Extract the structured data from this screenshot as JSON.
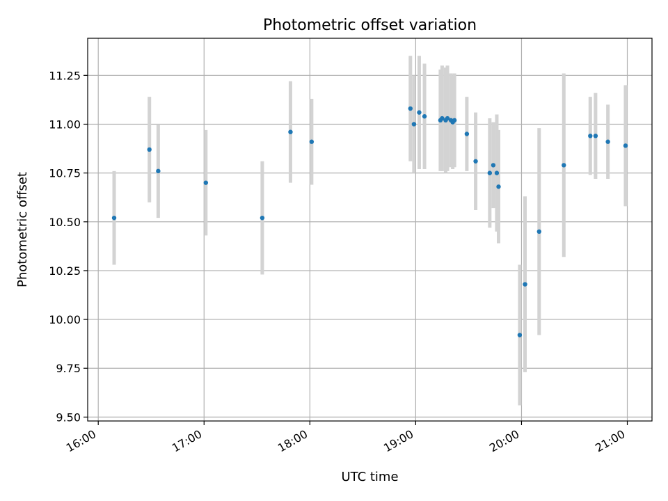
{
  "chart_data": {
    "type": "scatter",
    "title": "Photometric offset variation",
    "xlabel": "UTC time",
    "ylabel": "Photometric offset",
    "x_unit": "hours UTC",
    "xlim": [
      "15:54",
      "21:14"
    ],
    "ylim": [
      9.48,
      11.44
    ],
    "x_ticks": [
      "16:00",
      "17:00",
      "18:00",
      "19:00",
      "20:00",
      "21:00"
    ],
    "y_ticks": [
      "9.50",
      "9.75",
      "10.00",
      "10.25",
      "10.50",
      "10.75",
      "11.00",
      "11.25"
    ],
    "grid": true,
    "legend": "none",
    "colors": {
      "point": "#1f77b4",
      "errorbar": "#d3d3d3",
      "grid": "#b0b0b0",
      "axes": "#000000"
    },
    "series": [
      {
        "points": [
          {
            "x": "16:09",
            "y": 10.52,
            "err": 0.24
          },
          {
            "x": "16:29",
            "y": 10.87,
            "err": 0.27
          },
          {
            "x": "16:34",
            "y": 10.76,
            "err": 0.24
          },
          {
            "x": "17:01",
            "y": 10.7,
            "err": 0.27
          },
          {
            "x": "17:33",
            "y": 10.52,
            "err": 0.29
          },
          {
            "x": "17:49",
            "y": 10.96,
            "err": 0.26
          },
          {
            "x": "18:01",
            "y": 10.91,
            "err": 0.22
          },
          {
            "x": "18:57",
            "y": 11.08,
            "err": 0.27
          },
          {
            "x": "18:59",
            "y": 11.0,
            "err": 0.25
          },
          {
            "x": "19:02",
            "y": 11.06,
            "err": 0.29
          },
          {
            "x": "19:05",
            "y": 11.04,
            "err": 0.27
          },
          {
            "x": "19:14",
            "y": 11.02,
            "err": 0.26
          },
          {
            "x": "19:15",
            "y": 11.03,
            "err": 0.27
          },
          {
            "x": "19:17",
            "y": 11.02,
            "err": 0.27
          },
          {
            "x": "19:18",
            "y": 11.03,
            "err": 0.27
          },
          {
            "x": "19:20",
            "y": 11.02,
            "err": 0.24
          },
          {
            "x": "19:21",
            "y": 11.01,
            "err": 0.24
          },
          {
            "x": "19:22",
            "y": 11.02,
            "err": 0.24
          },
          {
            "x": "19:29",
            "y": 10.95,
            "err": 0.19
          },
          {
            "x": "19:34",
            "y": 10.81,
            "err": 0.25
          },
          {
            "x": "19:42",
            "y": 10.75,
            "err": 0.28
          },
          {
            "x": "19:44",
            "y": 10.79,
            "err": 0.22
          },
          {
            "x": "19:46",
            "y": 10.75,
            "err": 0.3
          },
          {
            "x": "19:47",
            "y": 10.68,
            "err": 0.29
          },
          {
            "x": "19:59",
            "y": 9.92,
            "err": 0.36
          },
          {
            "x": "20:02",
            "y": 10.18,
            "err": 0.45
          },
          {
            "x": "20:10",
            "y": 10.45,
            "err": 0.53
          },
          {
            "x": "20:24",
            "y": 10.79,
            "err": 0.47
          },
          {
            "x": "20:39",
            "y": 10.94,
            "err": 0.2
          },
          {
            "x": "20:42",
            "y": 10.94,
            "err": 0.22
          },
          {
            "x": "20:49",
            "y": 10.91,
            "err": 0.19
          },
          {
            "x": "20:59",
            "y": 10.89,
            "err": 0.31
          }
        ]
      }
    ]
  }
}
